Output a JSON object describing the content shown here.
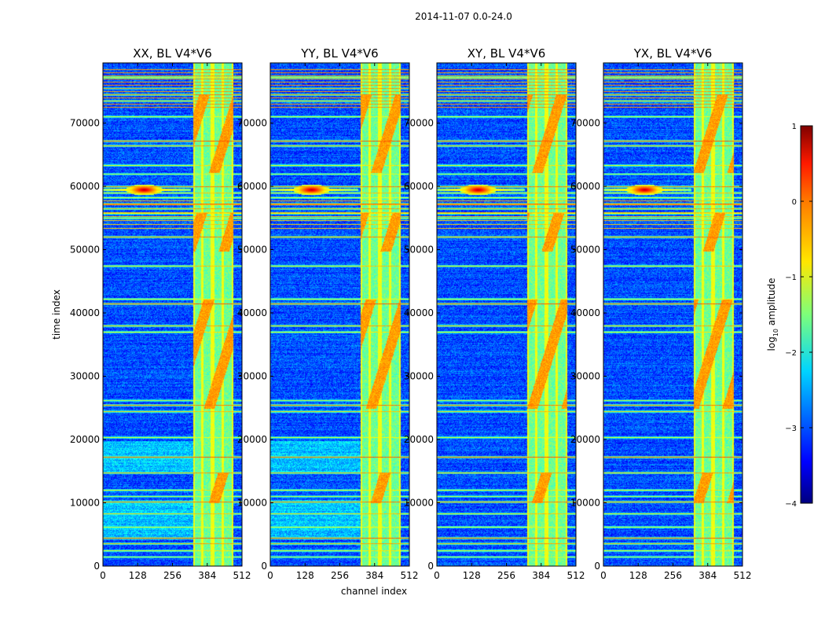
{
  "chart_data": {
    "type": "heatmap",
    "suptitle": "2014-11-07 0.0-24.0",
    "xlabel": "channel index",
    "ylabel": "time index",
    "xlim": [
      0,
      512
    ],
    "ylim": [
      0,
      79500
    ],
    "x_ticks": [
      0,
      128,
      256,
      384,
      512
    ],
    "y_ticks": [
      0,
      10000,
      20000,
      30000,
      40000,
      50000,
      60000,
      70000
    ],
    "panels": [
      {
        "title": "XX, BL V4*V6",
        "polarization": "XX"
      },
      {
        "title": "YY, BL V4*V6",
        "polarization": "YY"
      },
      {
        "title": "XY, BL V4*V6",
        "polarization": "XY"
      },
      {
        "title": "YX, BL V4*V6",
        "polarization": "YX"
      }
    ],
    "colorbar": {
      "label_prefix": "log",
      "label_sub": "10",
      "label_suffix": " amplitude",
      "range": [
        -4,
        1
      ],
      "ticks": [
        1,
        0,
        -1,
        -2,
        -3,
        -4
      ],
      "tick_labels": [
        "1",
        "0",
        "−1",
        "−2",
        "−3",
        "−4"
      ],
      "colormap": "jet"
    },
    "features": {
      "rfi_band_channels": [
        330,
        480
      ],
      "bright_strip_channels": [
        [
          330,
          337
        ],
        [
          360,
          370
        ],
        [
          396,
          408
        ],
        [
          436,
          444
        ],
        [
          474,
          482
        ]
      ],
      "strong_time_rows": [
        1500,
        2500,
        3600,
        4500,
        6200,
        8300,
        10200,
        11000,
        12000,
        14800,
        17300,
        20400,
        24500,
        25500,
        26200,
        37000,
        38000,
        41500,
        42200,
        47400,
        52100,
        55000,
        55800,
        56500,
        57300,
        58200,
        59000,
        60000,
        62000,
        63300,
        66500,
        67200,
        71000,
        73500,
        74500,
        75500,
        77300
      ],
      "bright_source": {
        "channel": 150,
        "time": 59500
      }
    }
  }
}
